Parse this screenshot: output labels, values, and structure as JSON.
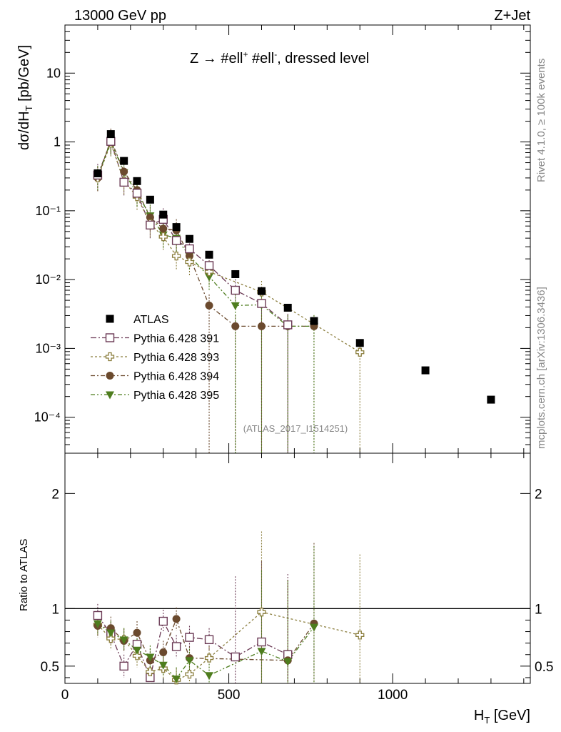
{
  "header": {
    "left": "13000 GeV pp",
    "right": "Z+Jet"
  },
  "side_text": {
    "rivet": "Rivet 4.1.0, ≥ 100k events",
    "mcplots": "mcplots.cern.ch [arXiv:1306.3436]"
  },
  "colors": {
    "atlas": "#000000",
    "p391": "#6b3a55",
    "p393": "#8a7d3c",
    "p394": "#6b4a2e",
    "p395": "#4e7d1e"
  },
  "chart_data": [
    {
      "type": "scatter",
      "title": "Z → #ell⁺ #ell⁻, dressed level",
      "title_parts": {
        "main": "Z → #ell",
        "sup1": "+",
        "mid": " #ell",
        "sup2": "-",
        "tail": ", dressed level"
      },
      "ylabel": "dσ/dH_T [pb/GeV]",
      "ylabel_parts": {
        "main": "dσ/dH",
        "sub": "T",
        "tail": " [pb/GeV]"
      },
      "yscale": "log",
      "ylim": [
        3e-05,
        50
      ],
      "xlim": [
        0,
        1420
      ],
      "watermark": "(ATLAS_2017_I1514251)",
      "y_tick_labels": [
        "10",
        "1",
        "10⁻¹",
        "10⁻²",
        "10⁻³",
        "10⁻⁴"
      ],
      "series": [
        {
          "name": "ATLAS",
          "marker": "square-filled",
          "color_key": "atlas",
          "line": false,
          "x": [
            100,
            140,
            180,
            220,
            260,
            300,
            340,
            380,
            440,
            520,
            600,
            680,
            760,
            900,
            1100,
            1300
          ],
          "y": [
            0.35,
            1.3,
            0.53,
            0.27,
            0.145,
            0.088,
            0.058,
            0.039,
            0.023,
            0.012,
            0.0068,
            0.0039,
            0.0025,
            0.0012,
            0.00048,
            0.00018
          ]
        },
        {
          "name": "Pythia 6.428 391",
          "marker": "square-open",
          "color_key": "p391",
          "line": true,
          "dash": "8,3,2,3",
          "x": [
            100,
            140,
            180,
            220,
            260,
            300,
            340,
            380,
            440,
            520,
            600,
            680
          ],
          "y": [
            0.33,
            1.02,
            0.26,
            0.18,
            0.062,
            0.075,
            0.037,
            0.028,
            0.016,
            0.007,
            0.0045,
            0.0022
          ]
        },
        {
          "name": "Pythia 6.428 393",
          "marker": "cross-open",
          "color_key": "p393",
          "line": true,
          "dash": "3,3",
          "x": [
            100,
            140,
            180,
            220,
            260,
            300,
            340,
            380,
            440,
            600,
            900
          ],
          "y": [
            0.3,
            0.96,
            0.27,
            0.16,
            0.065,
            0.042,
            0.022,
            0.018,
            0.013,
            0.0066,
            0.00088
          ]
        },
        {
          "name": "Pythia 6.428 394",
          "marker": "circle-filled",
          "color_key": "p394",
          "line": true,
          "dash": "6,3,2,3",
          "x": [
            100,
            140,
            180,
            220,
            260,
            300,
            340,
            380,
            440,
            520,
            600,
            680,
            760
          ],
          "y": [
            0.3,
            1.08,
            0.37,
            0.2,
            0.08,
            0.055,
            0.052,
            0.022,
            0.0042,
            0.0021,
            0.0021,
            0.0021,
            0.0021
          ]
        },
        {
          "name": "Pythia 6.428 395",
          "marker": "triangle-down-filled",
          "color_key": "p395",
          "line": true,
          "dash": "6,3,2,3,2,3",
          "x": [
            100,
            140,
            180,
            220,
            260,
            300,
            340,
            380,
            440,
            520,
            600,
            680,
            760
          ],
          "y": [
            0.31,
            1.02,
            0.36,
            0.18,
            0.085,
            0.045,
            0.04,
            0.022,
            0.011,
            0.0042,
            0.0043,
            0.0021,
            0.0021
          ]
        }
      ]
    },
    {
      "type": "scatter",
      "xlabel": "H_T [GeV]",
      "xlabel_parts": {
        "main": "H",
        "sub": "T",
        "tail": " [GeV]"
      },
      "ylabel": "Ratio to ATLAS",
      "ylim": [
        0.35,
        2.35
      ],
      "xlim": [
        0,
        1420
      ],
      "x_ticks": [
        0,
        500,
        1000
      ],
      "x_tick_labels": [
        "0",
        "500",
        "1000"
      ],
      "y_ticks": [
        0.5,
        1,
        2
      ],
      "y_tick_labels": [
        "0.5",
        "1",
        "2"
      ],
      "reference_line": 1,
      "series": [
        {
          "name": "Pythia 6.428 391",
          "marker": "square-open",
          "color_key": "p391",
          "line": true,
          "dash": "8,3,2,3",
          "x": [
            100,
            140,
            180,
            220,
            260,
            300,
            340,
            380,
            440,
            520,
            600,
            680
          ],
          "y": [
            0.94,
            0.78,
            0.5,
            0.69,
            0.4,
            0.89,
            0.67,
            0.75,
            0.73,
            0.58,
            0.71,
            0.6
          ]
        },
        {
          "name": "Pythia 6.428 393",
          "marker": "cross-open",
          "color_key": "p393",
          "line": true,
          "dash": "3,3",
          "x": [
            100,
            140,
            180,
            220,
            260,
            300,
            340,
            380,
            440,
            600,
            900
          ],
          "y": [
            0.86,
            0.74,
            0.73,
            0.59,
            0.45,
            0.48,
            0.38,
            0.43,
            0.57,
            0.97,
            0.77
          ]
        },
        {
          "name": "Pythia 6.428 394",
          "marker": "circle-filled",
          "color_key": "p394",
          "line": true,
          "dash": "6,3,2,3",
          "x": [
            100,
            140,
            180,
            220,
            260,
            300,
            340,
            380,
            680,
            760
          ],
          "y": [
            0.85,
            0.83,
            0.72,
            0.79,
            0.55,
            0.62,
            0.91,
            0.57,
            0.55,
            0.87
          ]
        },
        {
          "name": "Pythia 6.428 395",
          "marker": "triangle-down-filled",
          "color_key": "p395",
          "line": true,
          "dash": "6,3,2,3,2,3",
          "x": [
            100,
            140,
            180,
            220,
            260,
            300,
            340,
            380,
            440,
            600,
            680,
            760
          ],
          "y": [
            0.87,
            0.79,
            0.73,
            0.64,
            0.58,
            0.51,
            0.39,
            0.55,
            0.42,
            0.63,
            0.54,
            0.84
          ]
        }
      ]
    }
  ]
}
